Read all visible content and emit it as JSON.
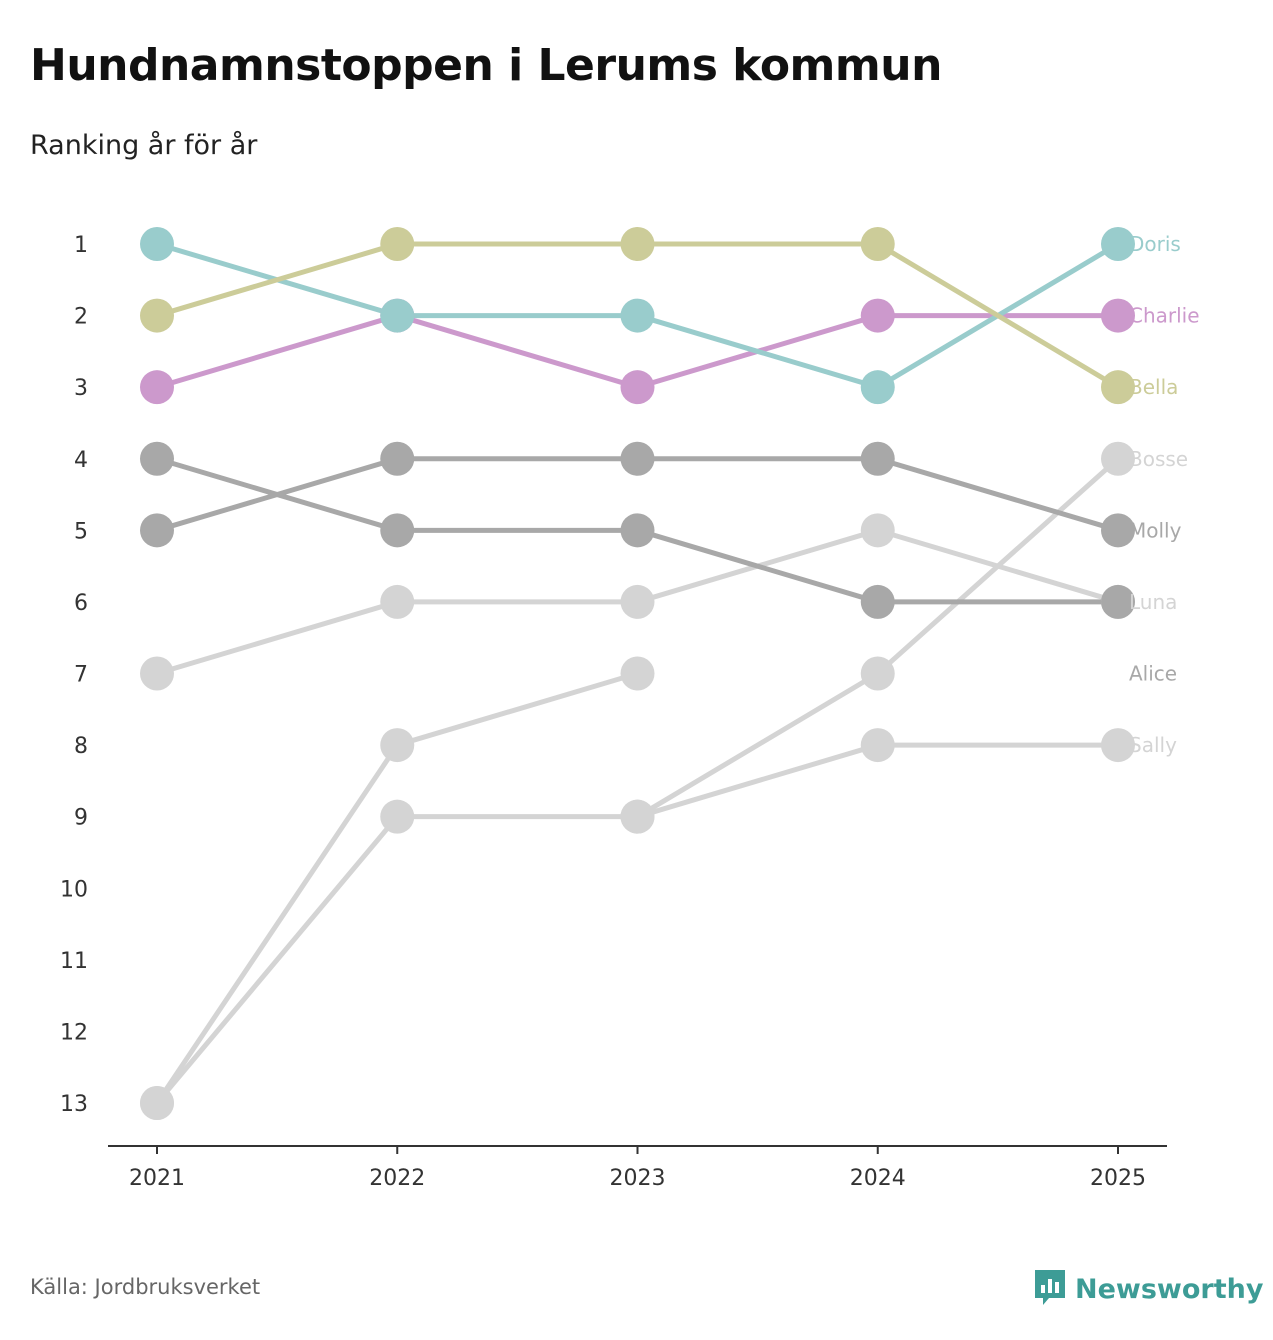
{
  "title": "Hundnamnstoppen i Lerums kommun",
  "subtitle": "Ranking år för år",
  "source": "Källa: Jordbruksverket",
  "brand": {
    "name": "Newsworthy",
    "icon": "newsworthy-logo-icon",
    "color": "#3d9c96"
  },
  "chart_data": {
    "type": "line",
    "title": "Hundnamnstoppen i Lerums kommun",
    "subtitle": "Ranking år för år",
    "x": [
      "2021",
      "2022",
      "2023",
      "2024",
      "2025"
    ],
    "y_ticks": [
      "1",
      "2",
      "3",
      "4",
      "5",
      "6",
      "7",
      "8",
      "9",
      "10",
      "11",
      "12",
      "13"
    ],
    "ylim": [
      1,
      13
    ],
    "y_inverted": true,
    "grid": false,
    "series": [
      {
        "name": "Sally",
        "values": [
          13,
          9,
          9,
          8,
          8
        ],
        "color": "#d4d4d4",
        "label_color": "#d4d4d4"
      },
      {
        "name": "Alice",
        "values": [
          13,
          8,
          7,
          null,
          null
        ],
        "color": "#d4d4d4",
        "label_color": "#a8a8a8"
      },
      {
        "name": "Bosse",
        "values": [
          null,
          null,
          9,
          7,
          4
        ],
        "color": "#d4d4d4",
        "label_color": "#d4d4d4"
      },
      {
        "name": "Luna",
        "values": [
          7,
          6,
          6,
          5,
          6
        ],
        "color": "#d4d4d4",
        "label_color": "#d4d4d4"
      },
      {
        "name": "Molly",
        "values": [
          5,
          4,
          4,
          4,
          5
        ],
        "color": "#a8a8a8",
        "label_color": "#a8a8a8"
      },
      {
        "name": "",
        "values": [
          4,
          5,
          5,
          6,
          6
        ],
        "color": "#a8a8a8",
        "label_color": "#a8a8a8"
      },
      {
        "name": "Charlie",
        "values": [
          3,
          2,
          3,
          2,
          2
        ],
        "color": "#cc99cc",
        "label_color": "#cc99cc"
      },
      {
        "name": "Doris",
        "values": [
          1,
          2,
          2,
          3,
          1
        ],
        "color": "#99cccc",
        "label_color": "#99cccc"
      },
      {
        "name": "Bella",
        "values": [
          2,
          1,
          1,
          1,
          3
        ],
        "color": "#cccc99",
        "label_color": "#cccc99"
      }
    ],
    "end_labels": [
      {
        "name": "Doris",
        "rank": 1,
        "color": "#99cccc"
      },
      {
        "name": "Charlie",
        "rank": 2,
        "color": "#cc99cc"
      },
      {
        "name": "Bella",
        "rank": 3,
        "color": "#cccc99"
      },
      {
        "name": "Bosse",
        "rank": 4,
        "color": "#d4d4d4"
      },
      {
        "name": "Molly",
        "rank": 5,
        "color": "#a8a8a8"
      },
      {
        "name": "Luna",
        "rank": 6,
        "color": "#d4d4d4"
      },
      {
        "name": "Alice",
        "rank": 7,
        "color": "#a8a8a8"
      },
      {
        "name": "Sally",
        "rank": 8,
        "color": "#d4d4d4"
      }
    ]
  }
}
